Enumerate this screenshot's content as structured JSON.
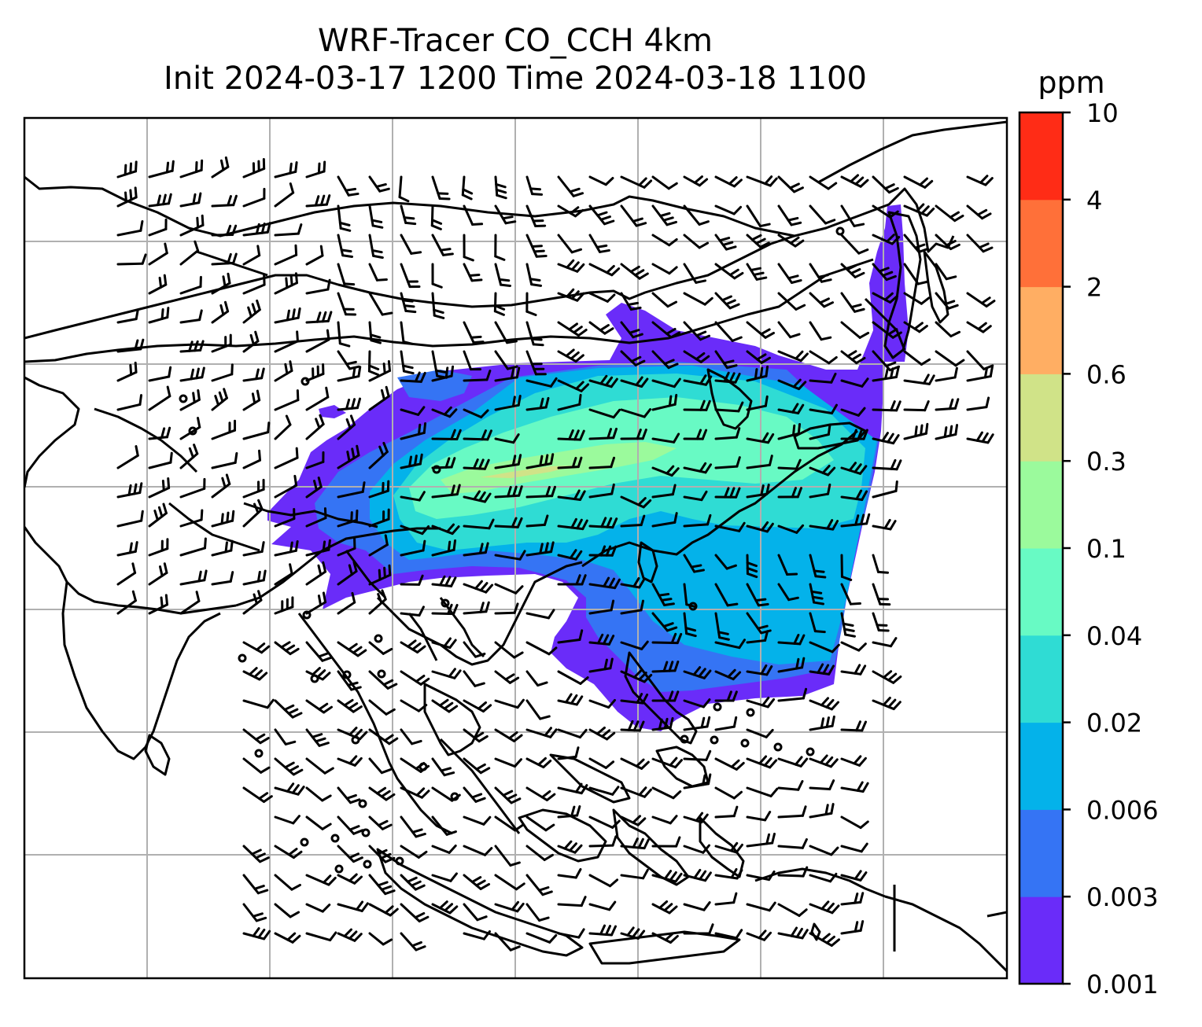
{
  "title": {
    "line1": "WRF-Tracer CO_CCH 4km",
    "line2": "Init 2024-03-17 1200 Time 2024-03-18 1100"
  },
  "colorbar": {
    "unit": "ppm",
    "levels": [
      "0.001",
      "0.003",
      "0.006",
      "0.02",
      "0.04",
      "0.1",
      "0.3",
      "0.6",
      "2",
      "4",
      "10"
    ],
    "colors": [
      "#6a2cf9",
      "#3574f4",
      "#04b2ea",
      "#2fdcd4",
      "#68fac4",
      "#9bfa9c",
      "#d0e388",
      "#ffae63",
      "#ff7039",
      "#ff2c16"
    ]
  },
  "map": {
    "land_outline_color": "#000000",
    "grid_color": "#b0b0b0",
    "wind_barb_color": "#000000",
    "frame_color": "#000000"
  }
}
